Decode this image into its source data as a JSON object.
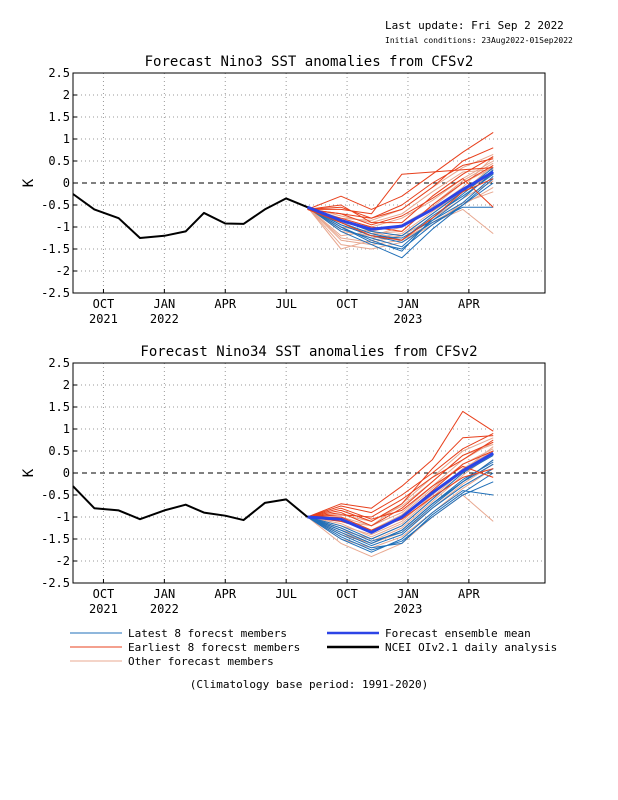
{
  "header": {
    "last_update": "Last update: Fri Sep 2 2022",
    "initial_condition": "Initial conditions: 23Aug2022-01Sep2022"
  },
  "footer": {
    "climatology_note": "(Climatology base period: 1991-2020)"
  },
  "legend": [
    {
      "label": "Latest 8 forecst members",
      "color": "#1f6fb8",
      "width": 1
    },
    {
      "label": "Earliest 8 forecst members",
      "color": "#e8401c",
      "width": 1
    },
    {
      "label": "Other forecast members",
      "color": "#e8a890",
      "width": 1
    },
    {
      "label": "Forecast ensemble mean",
      "color": "#2c44e6",
      "width": 2.5
    },
    {
      "label": "NCEI OIv2.1 daily analysis",
      "color": "#000000",
      "width": 2.5
    }
  ],
  "colors": {
    "latest": "#1f6fb8",
    "earliest": "#e8401c",
    "other": "#e8a890",
    "mean": "#2c44e6",
    "obs": "#000000",
    "grid": "#9a9a9a"
  },
  "chart_data": [
    {
      "type": "line",
      "title": "Forecast Nino3 SST anomalies from CFSv2",
      "ylabel": "K",
      "xlabel": "",
      "ylim": [
        -2.5,
        2.5
      ],
      "yticks": [
        "-2.5",
        "-2",
        "-1.5",
        "-1",
        "-0.5",
        "0",
        "0.5",
        "1",
        "1.5",
        "2",
        "2.5"
      ],
      "xlim": [
        0,
        15.5
      ],
      "x_ticks": [
        {
          "x": 1,
          "label": "OCT",
          "year": "2021"
        },
        {
          "x": 3,
          "label": "JAN",
          "year": "2022"
        },
        {
          "x": 5,
          "label": "APR",
          "year": ""
        },
        {
          "x": 7,
          "label": "JUL",
          "year": ""
        },
        {
          "x": 9,
          "label": "OCT",
          "year": ""
        },
        {
          "x": 11,
          "label": "JAN",
          "year": "2023"
        },
        {
          "x": 13,
          "label": "APR",
          "year": ""
        }
      ],
      "x_unit": "months (0 = Aug 2021)",
      "zero_line": "dashed",
      "grid": true,
      "observed": {
        "x": [
          0,
          0.7,
          1.5,
          2.2,
          3,
          3.7,
          4.3,
          5,
          5.6,
          6.3,
          7,
          7.7
        ],
        "y": [
          -0.25,
          -0.6,
          -0.8,
          -1.25,
          -1.2,
          -1.1,
          -0.68,
          -0.92,
          -0.93,
          -0.6,
          -0.35,
          -0.55
        ]
      },
      "forecast_x": [
        7.7,
        8.8,
        9.8,
        10.8,
        11.8,
        12.8,
        13.8
      ],
      "ensemble_mean": [
        -0.55,
        -0.85,
        -1.05,
        -0.98,
        -0.6,
        -0.15,
        0.25
      ],
      "members": {
        "latest": [
          [
            -0.55,
            -1.1,
            -1.4,
            -1.7,
            -1.05,
            -0.5,
            0.1
          ],
          [
            -0.55,
            -1.0,
            -1.3,
            -1.55,
            -0.8,
            -0.25,
            0.3
          ],
          [
            -0.55,
            -0.95,
            -1.2,
            -1.35,
            -0.9,
            -0.55,
            -0.55
          ],
          [
            -0.55,
            -1.05,
            -1.25,
            -1.45,
            -0.85,
            -0.35,
            0.25
          ],
          [
            -0.55,
            -0.9,
            -1.15,
            -1.3,
            -0.75,
            -0.3,
            0.2
          ],
          [
            -0.55,
            -1.0,
            -1.35,
            -1.5,
            -0.95,
            -0.5,
            0.0
          ],
          [
            -0.55,
            -0.85,
            -1.1,
            -1.2,
            -0.7,
            -0.2,
            0.35
          ],
          [
            -0.55,
            -0.95,
            -1.2,
            -1.25,
            -0.85,
            -0.45,
            0.15
          ]
        ],
        "earliest": [
          [
            -0.6,
            -0.3,
            -0.6,
            -0.3,
            0.2,
            0.7,
            1.15
          ],
          [
            -0.6,
            -0.7,
            -0.8,
            -0.6,
            -0.1,
            0.5,
            0.8
          ],
          [
            -0.6,
            -0.5,
            -0.9,
            -0.9,
            -0.3,
            0.2,
            0.6
          ],
          [
            -0.6,
            -0.8,
            -1.0,
            -1.1,
            -0.5,
            0.0,
            0.4
          ],
          [
            -0.6,
            -0.6,
            -0.7,
            0.2,
            0.25,
            0.3,
            0.35
          ],
          [
            -0.6,
            -0.55,
            -0.8,
            -0.5,
            0.0,
            0.4,
            0.55
          ],
          [
            -0.6,
            -0.9,
            -1.2,
            -1.3,
            -0.8,
            -0.2,
            0.1
          ],
          [
            -0.6,
            -0.7,
            -0.95,
            -0.75,
            -0.35,
            0.1,
            -0.55
          ]
        ],
        "other": [
          [
            -0.55,
            -1.5,
            -1.3,
            -1.2,
            -0.7,
            -0.2,
            0.4
          ],
          [
            -0.55,
            -1.2,
            -1.1,
            -1.3,
            -0.9,
            -0.5,
            -0.1
          ],
          [
            -0.55,
            -0.9,
            -1.0,
            -0.8,
            -0.4,
            0.1,
            0.5
          ],
          [
            -0.55,
            -1.3,
            -1.4,
            -1.3,
            -0.9,
            -0.6,
            -1.15
          ],
          [
            -0.55,
            -1.1,
            -1.2,
            -1.0,
            -0.6,
            -0.1,
            0.6
          ],
          [
            -0.55,
            -0.75,
            -0.9,
            -0.7,
            -0.2,
            0.25,
            0.3
          ],
          [
            -0.55,
            -1.4,
            -1.5,
            -1.35,
            -0.95,
            -0.45,
            -0.2
          ],
          [
            -0.55,
            -0.95,
            -1.15,
            -1.1,
            -0.5,
            0.05,
            0.45
          ],
          [
            -0.55,
            -1.05,
            -1.25,
            -1.15,
            -0.65,
            -0.2,
            0.2
          ],
          [
            -0.55,
            -0.8,
            -0.85,
            -0.6,
            -0.1,
            0.35,
            0.65
          ],
          [
            -0.55,
            -1.25,
            -1.35,
            -1.2,
            -0.8,
            -0.35,
            0.05
          ],
          [
            -0.55,
            -1.0,
            -1.1,
            -0.95,
            -0.55,
            0.0,
            0.35
          ]
        ]
      }
    },
    {
      "type": "line",
      "title": "Forecast Nino34 SST anomalies from CFSv2",
      "ylabel": "K",
      "xlabel": "",
      "ylim": [
        -2.5,
        2.5
      ],
      "yticks": [
        "-2.5",
        "-2",
        "-1.5",
        "-1",
        "-0.5",
        "0",
        "0.5",
        "1",
        "1.5",
        "2",
        "2.5"
      ],
      "xlim": [
        0,
        15.5
      ],
      "x_ticks": [
        {
          "x": 1,
          "label": "OCT",
          "year": "2021"
        },
        {
          "x": 3,
          "label": "JAN",
          "year": "2022"
        },
        {
          "x": 5,
          "label": "APR",
          "year": ""
        },
        {
          "x": 7,
          "label": "JUL",
          "year": ""
        },
        {
          "x": 9,
          "label": "OCT",
          "year": ""
        },
        {
          "x": 11,
          "label": "JAN",
          "year": "2023"
        },
        {
          "x": 13,
          "label": "APR",
          "year": ""
        }
      ],
      "x_unit": "months (0 = Aug 2021)",
      "zero_line": "dashed",
      "grid": true,
      "observed": {
        "x": [
          0,
          0.7,
          1.5,
          2.2,
          3,
          3.7,
          4.3,
          5,
          5.6,
          6.3,
          7,
          7.7
        ],
        "y": [
          -0.3,
          -0.8,
          -0.85,
          -1.05,
          -0.85,
          -0.72,
          -0.9,
          -0.97,
          -1.07,
          -0.68,
          -0.6,
          -1.0
        ]
      },
      "forecast_x": [
        7.7,
        8.8,
        9.8,
        10.8,
        11.8,
        12.8,
        13.8
      ],
      "ensemble_mean": [
        -1.0,
        -1.05,
        -1.35,
        -1.0,
        -0.45,
        0.05,
        0.45
      ],
      "members": {
        "latest": [
          [
            -1.0,
            -1.5,
            -1.8,
            -1.5,
            -0.9,
            -0.4,
            -0.5
          ],
          [
            -1.0,
            -1.3,
            -1.6,
            -1.3,
            -0.7,
            -0.2,
            0.2
          ],
          [
            -1.0,
            -1.4,
            -1.7,
            -1.6,
            -0.95,
            -0.45,
            0.0
          ],
          [
            -1.0,
            -1.2,
            -1.5,
            -1.2,
            -0.6,
            0.0,
            0.4
          ],
          [
            -1.0,
            -1.35,
            -1.65,
            -1.4,
            -0.8,
            -0.3,
            0.1
          ],
          [
            -1.0,
            -1.25,
            -1.55,
            -1.35,
            -0.75,
            -0.2,
            0.3
          ],
          [
            -1.0,
            -1.45,
            -1.75,
            -1.55,
            -1.0,
            -0.5,
            -0.2
          ],
          [
            -1.0,
            -1.3,
            -1.6,
            -1.3,
            -0.7,
            -0.15,
            0.25
          ]
        ],
        "earliest": [
          [
            -1.0,
            -0.7,
            -0.8,
            -0.3,
            0.3,
            1.4,
            0.95
          ],
          [
            -1.0,
            -0.85,
            -1.1,
            -0.7,
            0.1,
            0.8,
            0.85
          ],
          [
            -1.0,
            -0.9,
            -1.2,
            -0.8,
            -0.2,
            0.4,
            0.7
          ],
          [
            -1.0,
            -1.0,
            -1.3,
            -1.0,
            -0.4,
            0.2,
            0.5
          ],
          [
            -1.0,
            -0.75,
            -0.9,
            -0.5,
            0.0,
            0.55,
            0.9
          ],
          [
            -1.0,
            -0.95,
            -1.0,
            -0.6,
            -0.1,
            0.3,
            0.75
          ],
          [
            -1.0,
            -1.1,
            -1.3,
            -1.05,
            -0.55,
            -0.1,
            0.1
          ],
          [
            -1.0,
            -0.8,
            -1.05,
            -0.85,
            -0.3,
            0.15,
            -0.1
          ]
        ],
        "other": [
          [
            -1.0,
            -1.6,
            -1.9,
            -1.6,
            -1.0,
            -0.5,
            -1.1
          ],
          [
            -1.0,
            -1.2,
            -1.4,
            -1.1,
            -0.5,
            0.1,
            0.5
          ],
          [
            -1.0,
            -1.1,
            -1.2,
            -0.9,
            -0.3,
            0.3,
            0.7
          ],
          [
            -1.0,
            -1.4,
            -1.6,
            -1.3,
            -0.7,
            -0.2,
            0.3
          ],
          [
            -1.0,
            -1.0,
            -1.2,
            -0.7,
            -0.1,
            0.5,
            0.8
          ],
          [
            -1.0,
            -1.3,
            -1.5,
            -1.2,
            -0.6,
            0.0,
            0.5
          ],
          [
            -1.0,
            -1.15,
            -1.45,
            -1.15,
            -0.55,
            0.05,
            0.6
          ],
          [
            -1.0,
            -1.5,
            -1.7,
            -1.45,
            -0.9,
            -0.35,
            0.1
          ],
          [
            -1.0,
            -0.95,
            -1.1,
            -0.75,
            -0.2,
            0.4,
            0.65
          ],
          [
            -1.0,
            -1.25,
            -1.55,
            -1.25,
            -0.65,
            -0.05,
            0.45
          ],
          [
            -1.0,
            -1.05,
            -1.3,
            -0.95,
            -0.35,
            0.2,
            0.55
          ],
          [
            -1.0,
            -1.35,
            -1.6,
            -1.35,
            -0.8,
            -0.25,
            0.2
          ]
        ]
      }
    }
  ]
}
